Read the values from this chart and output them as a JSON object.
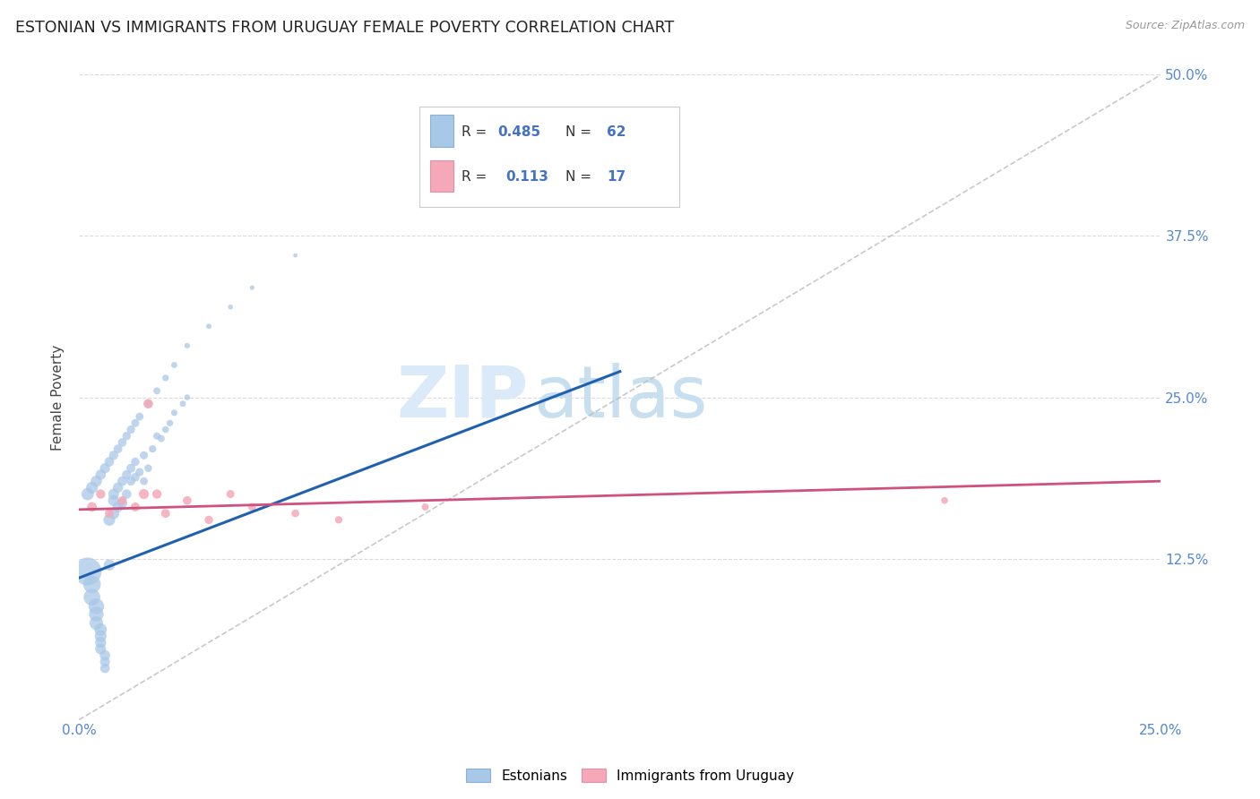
{
  "title": "ESTONIAN VS IMMIGRANTS FROM URUGUAY FEMALE POVERTY CORRELATION CHART",
  "source": "Source: ZipAtlas.com",
  "ylabel": "Female Poverty",
  "xlim": [
    0.0,
    0.25
  ],
  "ylim": [
    0.0,
    0.5
  ],
  "background_color": "#ffffff",
  "blue_color": "#a8c8e8",
  "blue_line_color": "#2060b0",
  "pink_color": "#f4a8b8",
  "pink_line_color": "#d05080",
  "diag_color": "#bbbbbb",
  "label1": "Estonians",
  "label2": "Immigrants from Uruguay",
  "legend_r1": "R = 0.485",
  "legend_n1": "N = 62",
  "legend_r2": "R =  0.113",
  "legend_n2": "N = 17",
  "est_x": [
    0.002,
    0.003,
    0.003,
    0.004,
    0.004,
    0.004,
    0.005,
    0.005,
    0.005,
    0.005,
    0.006,
    0.006,
    0.006,
    0.007,
    0.007,
    0.008,
    0.008,
    0.008,
    0.009,
    0.009,
    0.01,
    0.01,
    0.011,
    0.011,
    0.012,
    0.012,
    0.013,
    0.013,
    0.014,
    0.015,
    0.015,
    0.016,
    0.017,
    0.018,
    0.019,
    0.02,
    0.021,
    0.022,
    0.024,
    0.025,
    0.002,
    0.003,
    0.004,
    0.005,
    0.006,
    0.007,
    0.008,
    0.009,
    0.01,
    0.011,
    0.012,
    0.013,
    0.014,
    0.016,
    0.018,
    0.02,
    0.022,
    0.025,
    0.03,
    0.035,
    0.04,
    0.05
  ],
  "est_y": [
    0.115,
    0.105,
    0.095,
    0.088,
    0.082,
    0.075,
    0.07,
    0.065,
    0.06,
    0.055,
    0.05,
    0.045,
    0.04,
    0.12,
    0.155,
    0.16,
    0.17,
    0.175,
    0.165,
    0.18,
    0.168,
    0.185,
    0.175,
    0.19,
    0.195,
    0.185,
    0.188,
    0.2,
    0.192,
    0.205,
    0.185,
    0.195,
    0.21,
    0.22,
    0.218,
    0.225,
    0.23,
    0.238,
    0.245,
    0.25,
    0.175,
    0.18,
    0.185,
    0.19,
    0.195,
    0.2,
    0.205,
    0.21,
    0.215,
    0.22,
    0.225,
    0.23,
    0.235,
    0.245,
    0.255,
    0.265,
    0.275,
    0.29,
    0.305,
    0.32,
    0.335,
    0.36
  ],
  "est_size": [
    500,
    200,
    180,
    160,
    140,
    120,
    100,
    90,
    80,
    75,
    70,
    65,
    60,
    80,
    90,
    85,
    80,
    75,
    70,
    68,
    65,
    60,
    58,
    55,
    52,
    50,
    48,
    46,
    44,
    42,
    40,
    38,
    36,
    34,
    32,
    30,
    28,
    26,
    24,
    22,
    100,
    90,
    80,
    70,
    65,
    60,
    55,
    50,
    48,
    46,
    44,
    42,
    40,
    36,
    32,
    28,
    24,
    20,
    18,
    16,
    14,
    12
  ],
  "uru_x": [
    0.003,
    0.005,
    0.007,
    0.01,
    0.013,
    0.016,
    0.018,
    0.02,
    0.025,
    0.03,
    0.035,
    0.04,
    0.05,
    0.06,
    0.08,
    0.2,
    0.015
  ],
  "uru_y": [
    0.165,
    0.175,
    0.16,
    0.17,
    0.165,
    0.245,
    0.175,
    0.16,
    0.17,
    0.155,
    0.175,
    0.165,
    0.16,
    0.155,
    0.165,
    0.17,
    0.175
  ],
  "uru_size": [
    60,
    55,
    50,
    48,
    52,
    60,
    55,
    50,
    48,
    45,
    42,
    40,
    38,
    35,
    32,
    30,
    65
  ],
  "blue_trendline": [
    0.0,
    0.11,
    0.125,
    0.27
  ],
  "pink_trendline": [
    0.0,
    0.163,
    0.25,
    0.185
  ],
  "watermark_zip_color": "#d4e8f5",
  "watermark_atlas_color": "#c8dff0"
}
